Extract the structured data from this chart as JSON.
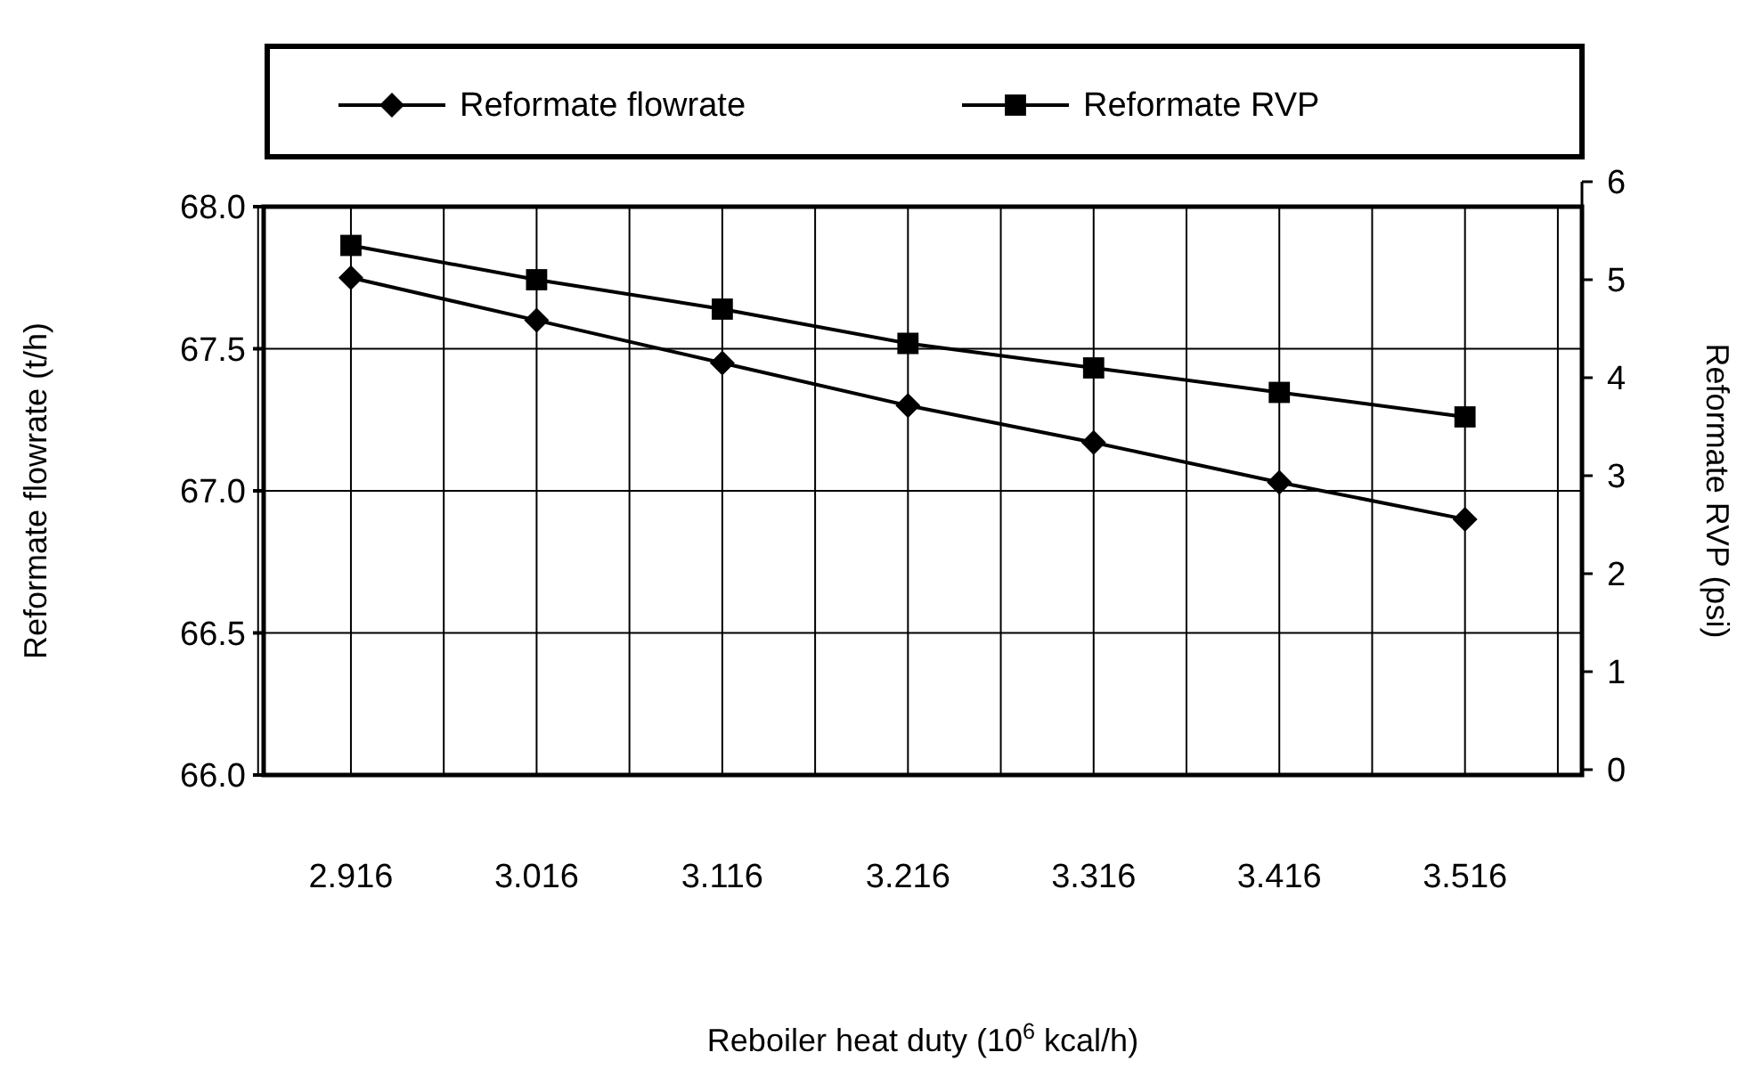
{
  "chart_data": {
    "type": "line",
    "xlabel": "Reboiler heat duty (10$^{6}$ kcal/h)",
    "ylabel": "Reformate flowrate (t/h)",
    "y2label": "Reformate RVP (psi)",
    "categories": [
      "2.916",
      "3.016",
      "3.116",
      "3.216",
      "3.316",
      "3.416",
      "3.516"
    ],
    "series": [
      {
        "name": "Reformate flowrate",
        "color": "#000000",
        "marker": "diamond",
        "values": [
          67.75,
          67.6,
          67.45,
          67.3,
          67.17,
          67.03,
          66.9
        ]
      },
      {
        "name": "Reformate RVP",
        "color": "#000000",
        "marker": "square",
        "axis": "y2",
        "values": [
          5.35,
          5.0,
          4.7,
          4.35,
          4.1,
          3.85,
          3.6
        ]
      }
    ],
    "ylim": [
      66.0,
      68.0
    ],
    "yticks": [
      {
        "value": 66,
        "label": "66.0"
      },
      {
        "value": 66.5,
        "label": "66.5"
      },
      {
        "value": 67,
        "label": "67.0"
      },
      {
        "value": 67.5,
        "label": "67.5"
      },
      {
        "value": 68,
        "label": "68.0"
      }
    ],
    "y2lim": [
      0,
      6
    ],
    "y2ticks": [
      0,
      1,
      2,
      3,
      4,
      5,
      6
    ],
    "grid": true,
    "legend": "top",
    "line_style": "solid"
  }
}
